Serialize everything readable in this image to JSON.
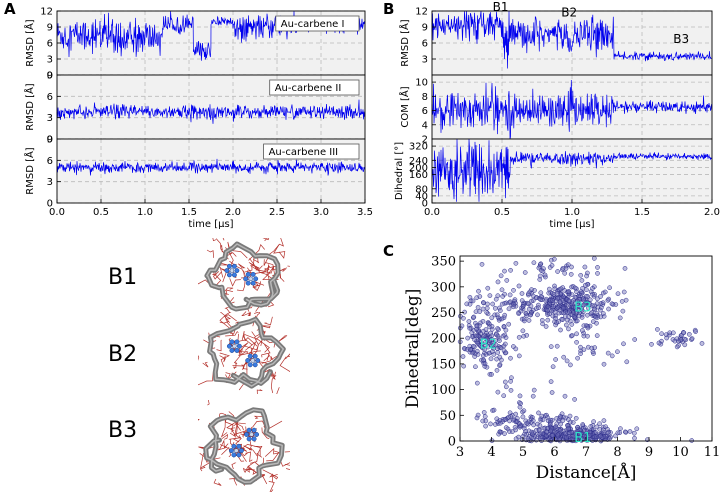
{
  "figure": {
    "panels": {
      "A": "A",
      "B": "B",
      "C": "C"
    }
  },
  "chart_data": [
    {
      "id": "A",
      "type": "line",
      "x_label": "time [μs]",
      "xlim": [
        0.0,
        3.5
      ],
      "x_ticks": [
        "0.0",
        "0.5",
        "1.0",
        "1.5",
        "2.0",
        "2.5",
        "3.0",
        "3.5"
      ],
      "x_tick_values": [
        0.0,
        0.5,
        1.0,
        1.5,
        2.0,
        2.5,
        3.0,
        3.5
      ],
      "subplots": [
        {
          "ylabel": "RMSD [Å]",
          "ylim": [
            0,
            12
          ],
          "y_ticks": [
            "0",
            "3",
            "6",
            "9",
            "12"
          ],
          "y_tick_values": [
            0,
            3,
            6,
            9,
            12
          ],
          "legend": "Au-carbene I",
          "segments": [
            {
              "x": [
                0.0,
                0.7
              ],
              "mean": 7.5,
              "amp": 3.5
            },
            {
              "x": [
                0.7,
                1.2
              ],
              "mean": 7.0,
              "amp": 3.5
            },
            {
              "x": [
                1.2,
                1.55
              ],
              "mean": 9.5,
              "amp": 1.8
            },
            {
              "x": [
                1.55,
                1.75
              ],
              "mean": 4.5,
              "amp": 2.0
            },
            {
              "x": [
                1.75,
                2.0
              ],
              "mean": 10.0,
              "amp": 1.0
            },
            {
              "x": [
                2.0,
                2.75
              ],
              "mean": 9.0,
              "amp": 2.5
            },
            {
              "x": [
                2.75,
                3.5
              ],
              "mean": 9.5,
              "amp": 1.5
            }
          ]
        },
        {
          "ylabel": "RMSD [Å]",
          "ylim": [
            0,
            9
          ],
          "y_ticks": [
            "0",
            "3",
            "6",
            "9"
          ],
          "y_tick_values": [
            0,
            3,
            6,
            9
          ],
          "legend": "Au-carbene II",
          "segments": [
            {
              "x": [
                0.0,
                3.5
              ],
              "mean": 3.8,
              "amp": 1.1
            }
          ]
        },
        {
          "ylabel": "RMSD [Å]",
          "ylim": [
            0,
            9
          ],
          "y_ticks": [
            "0",
            "3",
            "6",
            "9"
          ],
          "y_tick_values": [
            0,
            3,
            6,
            9
          ],
          "legend": "Au-carbene III",
          "segments": [
            {
              "x": [
                0.0,
                3.5
              ],
              "mean": 5.0,
              "amp": 0.8
            }
          ]
        }
      ]
    },
    {
      "id": "B",
      "type": "line",
      "x_label": "time [μs]",
      "xlim": [
        0.0,
        2.0
      ],
      "x_ticks": [
        "0.0",
        "0.5",
        "1.0",
        "1.5",
        "2.0"
      ],
      "x_tick_values": [
        0.0,
        0.5,
        1.0,
        1.5,
        2.0
      ],
      "annotations": [
        {
          "text": "B1",
          "x": 0.49,
          "y": 12.0
        },
        {
          "text": "B2",
          "x": 0.98,
          "y": 11.0
        },
        {
          "text": "B3",
          "x": 1.78,
          "y": 6.0
        }
      ],
      "subplots": [
        {
          "ylabel": "RMSD [Å]",
          "ylim": [
            0,
            12
          ],
          "y_ticks": [
            "3",
            "6",
            "9",
            "12"
          ],
          "y_tick_values": [
            3,
            6,
            9,
            12
          ],
          "segments": [
            {
              "x": [
                0.0,
                0.5
              ],
              "mean": 9.0,
              "amp": 3.0
            },
            {
              "x": [
                0.5,
                0.57
              ],
              "mean": 6.0,
              "amp": 5.0
            },
            {
              "x": [
                0.57,
                1.3
              ],
              "mean": 7.5,
              "amp": 3.5
            },
            {
              "x": [
                1.3,
                2.0
              ],
              "mean": 3.5,
              "amp": 0.8
            }
          ]
        },
        {
          "ylabel": "COM [Å]",
          "ylim": [
            2,
            11
          ],
          "y_ticks": [
            "2",
            "4",
            "6",
            "8",
            "10"
          ],
          "y_tick_values": [
            2,
            4,
            6,
            8,
            10
          ],
          "segments": [
            {
              "x": [
                0.0,
                0.57
              ],
              "mean": 6.0,
              "amp": 3.5
            },
            {
              "x": [
                0.57,
                1.3
              ],
              "mean": 6.0,
              "amp": 2.5
            },
            {
              "x": [
                1.3,
                2.0
              ],
              "mean": 6.5,
              "amp": 1.0
            }
          ]
        },
        {
          "ylabel": "Dihedral [°]",
          "ylim": [
            0,
            360
          ],
          "y_ticks": [
            "0",
            "40",
            "80",
            "160",
            "200",
            "240",
            "320"
          ],
          "y_tick_values": [
            0,
            40,
            80,
            160,
            200,
            240,
            320
          ],
          "segments": [
            {
              "x": [
                0.0,
                0.56
              ],
              "mean": 170,
              "amp": 175
            },
            {
              "x": [
                0.56,
                1.3
              ],
              "mean": 250,
              "amp": 40
            },
            {
              "x": [
                1.3,
                2.0
              ],
              "mean": 262,
              "amp": 20
            }
          ]
        }
      ]
    },
    {
      "id": "C",
      "type": "scatter",
      "x_label": "Distance[Å]",
      "y_label": "Dihedral[deg]",
      "xlim": [
        3,
        11
      ],
      "ylim": [
        0,
        360
      ],
      "x_ticks": [
        "3",
        "4",
        "5",
        "6",
        "7",
        "8",
        "9",
        "10",
        "11"
      ],
      "x_tick_values": [
        3,
        4,
        5,
        6,
        7,
        8,
        9,
        10,
        11
      ],
      "y_ticks": [
        "0",
        "50",
        "100",
        "150",
        "200",
        "250",
        "300",
        "350"
      ],
      "y_tick_values": [
        0,
        50,
        100,
        150,
        200,
        250,
        300,
        350
      ],
      "clusters": [
        {
          "label": "B1",
          "cx": 6.5,
          "cy": 10,
          "sx": 0.9,
          "sy": 10,
          "n": 320
        },
        {
          "label": "B2",
          "cx": 3.8,
          "cy": 190,
          "sx": 0.35,
          "sy": 25,
          "n": 140
        },
        {
          "label": "B3",
          "cx": 6.6,
          "cy": 265,
          "sx": 0.65,
          "sy": 18,
          "n": 260
        }
      ],
      "background_clusters": [
        {
          "cx": 4.8,
          "cy": 260,
          "sx": 0.9,
          "sy": 20,
          "n": 120
        },
        {
          "cx": 5.3,
          "cy": 35,
          "sx": 1.0,
          "sy": 12,
          "n": 100
        },
        {
          "cx": 9.8,
          "cy": 200,
          "sx": 0.5,
          "sy": 8,
          "n": 35
        },
        {
          "cx": 6.0,
          "cy": 340,
          "sx": 1.2,
          "sy": 12,
          "n": 40
        },
        {
          "cx": 6.7,
          "cy": 180,
          "sx": 0.5,
          "sy": 15,
          "n": 30
        },
        {
          "cx": 5.0,
          "cy": 110,
          "sx": 0.8,
          "sy": 50,
          "n": 35
        }
      ],
      "label_positions": [
        {
          "text": "B1",
          "x": 6.9,
          "y": 8
        },
        {
          "text": "B2",
          "x": 3.9,
          "y": 190
        },
        {
          "text": "B3",
          "x": 6.9,
          "y": 262
        }
      ]
    }
  ],
  "structures": [
    {
      "label": "B1"
    },
    {
      "label": "B2"
    },
    {
      "label": "B3"
    }
  ],
  "colors": {
    "line": "#0000ee",
    "scatter_fill": "#6d6db6",
    "scatter_edge": "#2b2b8a",
    "panel_bg": "#f1f1f1",
    "grid": "#bbbbbb",
    "cluster_label": "#2de6c8",
    "ribbon": "#7a7a7a",
    "ligand": "#3a7be0",
    "sidechain": "#b3302a"
  }
}
